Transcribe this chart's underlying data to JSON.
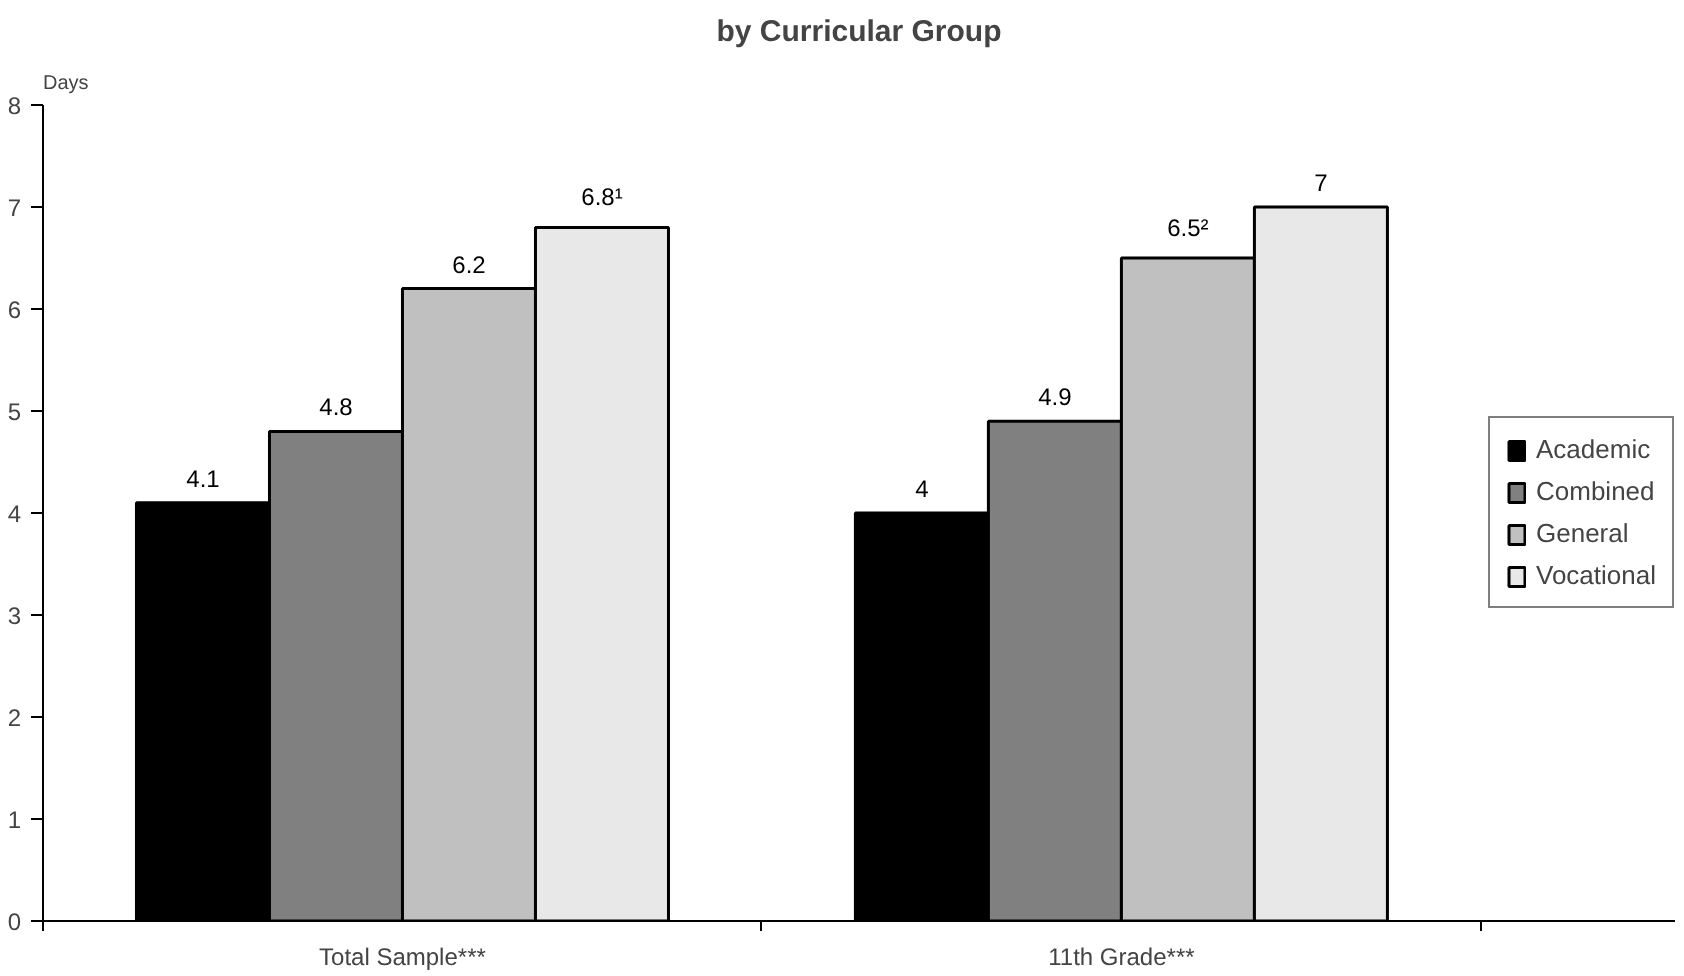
{
  "chart_data": {
    "type": "bar",
    "title": "by Curricular Group",
    "ylabel": "Days",
    "categories": [
      "Total Sample***",
      "11th Grade***"
    ],
    "series": [
      {
        "name": "Academic",
        "color": "#000000",
        "values": [
          4.1,
          4.0
        ],
        "value_labels": [
          "4.1",
          "4"
        ]
      },
      {
        "name": "Combined",
        "color": "#808080",
        "values": [
          4.8,
          4.9
        ],
        "value_labels": [
          "4.8",
          "4.9"
        ]
      },
      {
        "name": "General",
        "color": "#c0c0c0",
        "values": [
          6.2,
          6.5
        ],
        "value_labels": [
          "6.2",
          "6.5²"
        ]
      },
      {
        "name": "Vocational",
        "color": "#e8e8e8",
        "values": [
          6.8,
          7.0
        ],
        "value_labels": [
          "6.8¹",
          "7"
        ]
      }
    ],
    "ylim": [
      0,
      8
    ],
    "yticks": [
      0,
      1,
      2,
      3,
      4,
      5,
      6,
      7,
      8
    ],
    "grid": false,
    "legend": "right"
  }
}
